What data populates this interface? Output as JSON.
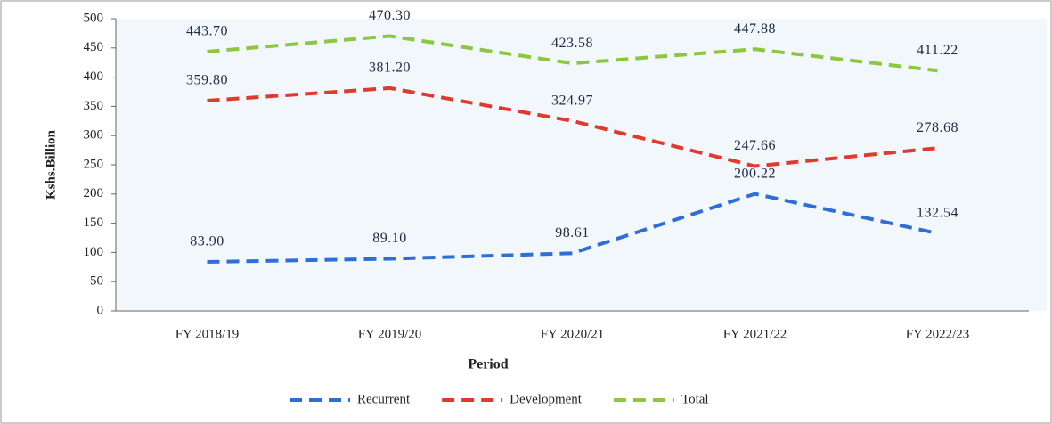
{
  "chart_data": {
    "type": "line",
    "categories": [
      "FY 2018/19",
      "FY 2019/20",
      "FY 2020/21",
      "FY 2021/22",
      "FY 2022/23"
    ],
    "series": [
      {
        "name": "Recurrent",
        "color": "#2e6fd6",
        "values": [
          83.9,
          89.1,
          98.61,
          200.22,
          132.54
        ],
        "value_labels": [
          "83.90",
          "89.10",
          "98.61",
          "200.22",
          "132.54"
        ]
      },
      {
        "name": "Development",
        "color": "#e03a2f",
        "values": [
          359.8,
          381.2,
          324.97,
          247.66,
          278.68
        ],
        "value_labels": [
          "359.80",
          "381.20",
          "324.97",
          "247.66",
          "278.68"
        ]
      },
      {
        "name": "Total",
        "color": "#8dc63f",
        "values": [
          443.7,
          470.3,
          423.58,
          447.88,
          411.22
        ],
        "value_labels": [
          "443.70",
          "470.30",
          "423.58",
          "447.88",
          "411.22"
        ]
      }
    ],
    "xlabel": "Period",
    "ylabel": "Kshs.Billion",
    "ylim": [
      0,
      500
    ],
    "yticks": [
      0,
      50,
      100,
      150,
      200,
      250,
      300,
      350,
      400,
      450,
      500
    ],
    "legend": "bottom"
  }
}
